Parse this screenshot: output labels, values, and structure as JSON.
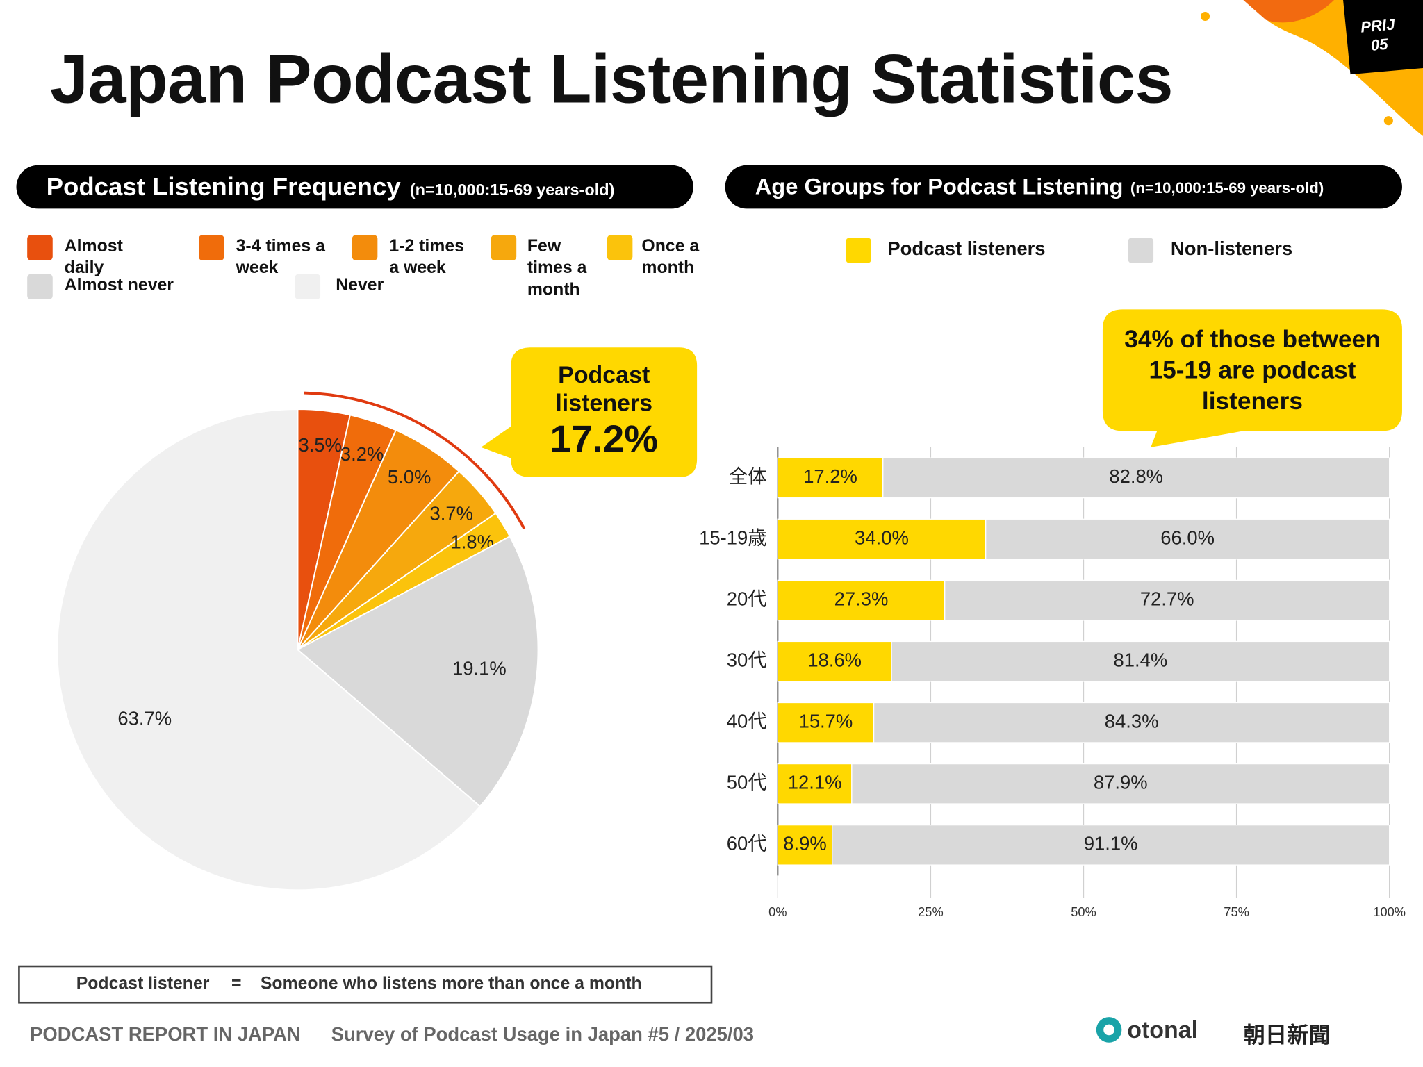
{
  "title": "Japan Podcast Listening Statistics",
  "badge": [
    "PRIJ",
    "05"
  ],
  "definition": {
    "term": "Podcast listener",
    "equals": "=",
    "meaning": "Someone who listens more than once a month"
  },
  "footer": {
    "report": "PODCAST REPORT IN JAPAN",
    "survey": "Survey of Podcast Usage in Japan #5 / 2025/03"
  },
  "logos": [
    "otonal",
    "朝日新聞"
  ],
  "chart_data": [
    {
      "type": "pie",
      "title": "Podcast Listening Frequency",
      "subtitle": "(n=10,000:15-69 years-old)",
      "categories": [
        "Almost daily",
        "3-4 times a week",
        "1-2 times a week",
        "Few times a month",
        "Once a month",
        "Almost never",
        "Never"
      ],
      "values": [
        3.5,
        3.2,
        5.0,
        3.7,
        1.8,
        19.1,
        63.7
      ],
      "value_labels": [
        "3.5%",
        "3.2%",
        "5.0%",
        "3.7%",
        "1.8%",
        "19.1%",
        "63.7%"
      ],
      "colors": [
        "#e8500e",
        "#f06c0b",
        "#f38c0c",
        "#f6a80d",
        "#fbc30c",
        "#d9d9d9",
        "#f0f0f0"
      ],
      "annotation": [
        "Podcast listeners",
        "17.2%"
      ]
    },
    {
      "type": "bar",
      "orientation": "horizontal",
      "stacked": true,
      "title": "Age Groups for Podcast Listening",
      "subtitle": "(n=10,000:15-69 years-old)",
      "categories": [
        "全体",
        "15-19歳",
        "20代",
        "30代",
        "40代",
        "50代",
        "60代"
      ],
      "series": [
        {
          "name": "Podcast listeners",
          "color": "#ffd800",
          "values": [
            17.2,
            34.0,
            27.3,
            18.6,
            15.7,
            12.1,
            8.9
          ],
          "value_labels": [
            "17.2%",
            "34.0%",
            "27.3%",
            "18.6%",
            "15.7%",
            "12.1%",
            "8.9%"
          ]
        },
        {
          "name": "Non-listeners",
          "color": "#d9d9d9",
          "values": [
            82.8,
            66.0,
            72.7,
            81.4,
            84.3,
            87.9,
            91.1
          ],
          "value_labels": [
            "82.8%",
            "66.0%",
            "72.7%",
            "81.4%",
            "84.3%",
            "87.9%",
            "91.1%"
          ]
        }
      ],
      "xlim": [
        0,
        100
      ],
      "xticks": [
        {
          "value": 0,
          "label": "0%"
        },
        {
          "value": 25,
          "label": "25%"
        },
        {
          "value": 50,
          "label": "50%"
        },
        {
          "value": 75,
          "label": "75%"
        },
        {
          "value": 100,
          "label": "100%"
        }
      ],
      "grid": true,
      "annotation": "34% of those between 15-19 are podcast listeners"
    }
  ]
}
